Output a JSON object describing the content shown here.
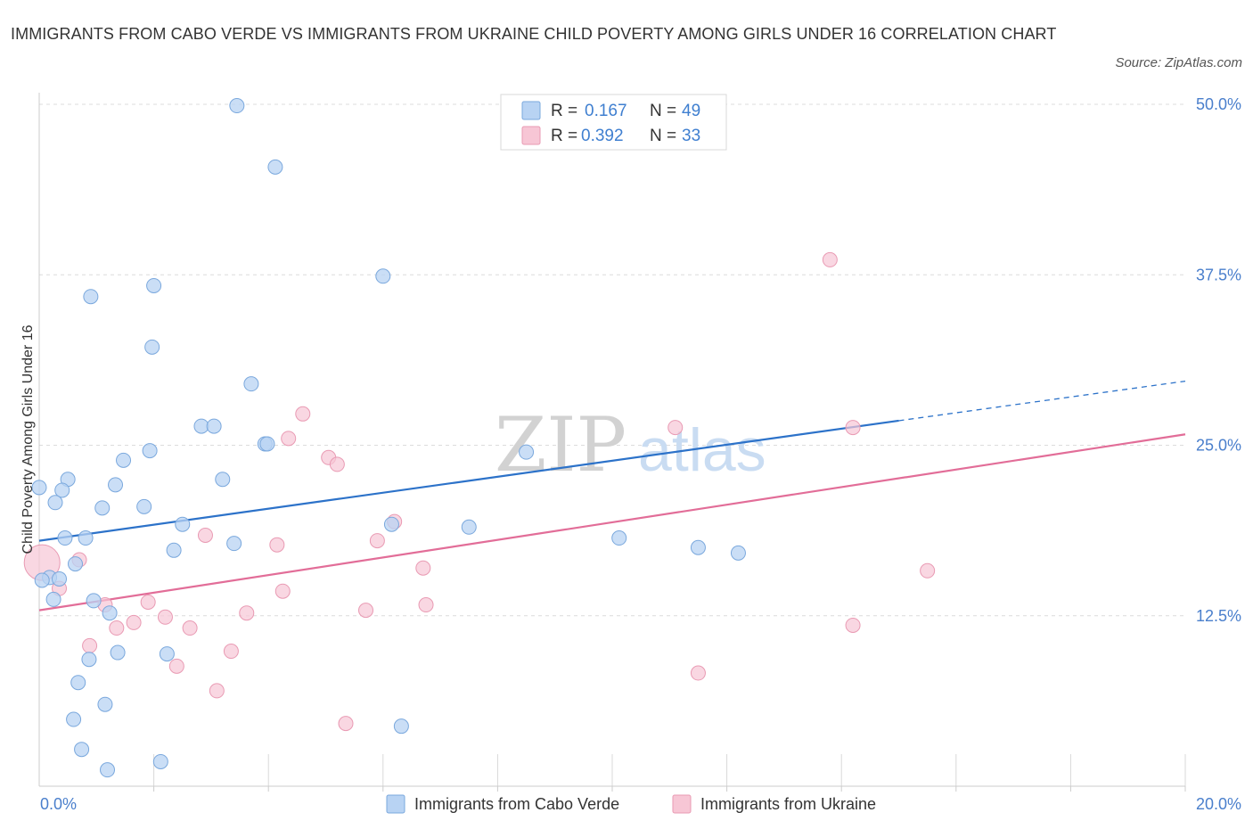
{
  "title": "IMMIGRANTS FROM CABO VERDE VS IMMIGRANTS FROM UKRAINE CHILD POVERTY AMONG GIRLS UNDER 16 CORRELATION CHART",
  "source": "Source: ZipAtlas.com",
  "colors": {
    "cabo_verde_fill": "#b8d3f3",
    "cabo_verde_stroke": "#7aa8dd",
    "cabo_verde_line": "#2c72c9",
    "ukraine_fill": "#f7c6d5",
    "ukraine_stroke": "#e99ab3",
    "ukraine_line": "#e26d98",
    "tick_label": "#4a7fcc",
    "grid": "#dcdcdc"
  },
  "stats_box": {
    "rows": [
      {
        "r_label": "R =",
        "r_value": "0.167",
        "n_label": "N =",
        "n_value": "49"
      },
      {
        "r_label": "R =",
        "r_value": "0.392",
        "n_label": "N =",
        "n_value": "33"
      }
    ]
  },
  "watermark": {
    "part1": "ZIP",
    "part2": "atlas"
  },
  "chart_data": {
    "type": "scatter",
    "title": "IMMIGRANTS FROM CABO VERDE VS IMMIGRANTS FROM UKRAINE CHILD POVERTY AMONG GIRLS UNDER 16 CORRELATION CHART",
    "xlabel": "",
    "ylabel": "Child Poverty Among Girls Under 16",
    "xlim": [
      0,
      20
    ],
    "ylim": [
      0,
      50
    ],
    "x_tick_labels": [
      "0.0%",
      "20.0%"
    ],
    "y_ticks": [
      12.5,
      25.0,
      37.5,
      50.0
    ],
    "y_tick_labels": [
      "12.5%",
      "25.0%",
      "37.5%",
      "50.0%"
    ],
    "grid": true,
    "legend_position": "bottom-center",
    "series": [
      {
        "name": "Immigrants from Cabo Verde",
        "r": 0.167,
        "n": 49,
        "trend": {
          "x0": 0,
          "y0": 18.0,
          "x1": 15.0,
          "y1": 26.8,
          "dashed_to_x": 20,
          "dashed_to_y": 29.7
        },
        "points": [
          {
            "x": 3.45,
            "y": 49.9
          },
          {
            "x": 4.12,
            "y": 45.4
          },
          {
            "x": 6.0,
            "y": 37.4
          },
          {
            "x": 2.0,
            "y": 36.7
          },
          {
            "x": 0.9,
            "y": 35.9
          },
          {
            "x": 1.97,
            "y": 32.2
          },
          {
            "x": 3.7,
            "y": 29.5
          },
          {
            "x": 2.83,
            "y": 26.4
          },
          {
            "x": 3.05,
            "y": 26.4
          },
          {
            "x": 3.94,
            "y": 25.1
          },
          {
            "x": 3.98,
            "y": 25.1
          },
          {
            "x": 1.93,
            "y": 24.6
          },
          {
            "x": 8.5,
            "y": 24.5
          },
          {
            "x": 1.47,
            "y": 23.9
          },
          {
            "x": 0.5,
            "y": 22.5
          },
          {
            "x": 3.2,
            "y": 22.5
          },
          {
            "x": 1.33,
            "y": 22.1
          },
          {
            "x": 0.0,
            "y": 21.9
          },
          {
            "x": 0.4,
            "y": 21.7
          },
          {
            "x": 0.28,
            "y": 20.8
          },
          {
            "x": 1.83,
            "y": 20.5
          },
          {
            "x": 1.1,
            "y": 20.4
          },
          {
            "x": 2.5,
            "y": 19.2
          },
          {
            "x": 6.15,
            "y": 19.2
          },
          {
            "x": 7.5,
            "y": 19.0
          },
          {
            "x": 0.45,
            "y": 18.2
          },
          {
            "x": 0.81,
            "y": 18.2
          },
          {
            "x": 10.12,
            "y": 18.2
          },
          {
            "x": 3.4,
            "y": 17.8
          },
          {
            "x": 11.5,
            "y": 17.5
          },
          {
            "x": 2.35,
            "y": 17.3
          },
          {
            "x": 12.2,
            "y": 17.1
          },
          {
            "x": 0.63,
            "y": 16.3
          },
          {
            "x": 0.18,
            "y": 15.3
          },
          {
            "x": 0.35,
            "y": 15.2
          },
          {
            "x": 0.05,
            "y": 15.1
          },
          {
            "x": 0.25,
            "y": 13.7
          },
          {
            "x": 0.95,
            "y": 13.6
          },
          {
            "x": 1.23,
            "y": 12.7
          },
          {
            "x": 1.37,
            "y": 9.8
          },
          {
            "x": 2.23,
            "y": 9.7
          },
          {
            "x": 0.87,
            "y": 9.3
          },
          {
            "x": 0.68,
            "y": 7.6
          },
          {
            "x": 1.15,
            "y": 6.0
          },
          {
            "x": 0.6,
            "y": 4.9
          },
          {
            "x": 6.32,
            "y": 4.4
          },
          {
            "x": 0.74,
            "y": 2.7
          },
          {
            "x": 2.12,
            "y": 1.8
          },
          {
            "x": 1.19,
            "y": 1.2
          }
        ]
      },
      {
        "name": "Immigrants from Ukraine",
        "r": 0.392,
        "n": 33,
        "trend": {
          "x0": 0,
          "y0": 12.9,
          "x1": 20,
          "y1": 25.8
        },
        "points": [
          {
            "x": 13.8,
            "y": 38.6
          },
          {
            "x": 4.6,
            "y": 27.3
          },
          {
            "x": 11.1,
            "y": 26.3
          },
          {
            "x": 14.2,
            "y": 26.3
          },
          {
            "x": 4.35,
            "y": 25.5
          },
          {
            "x": 5.05,
            "y": 24.1
          },
          {
            "x": 5.2,
            "y": 23.6
          },
          {
            "x": 6.2,
            "y": 19.4
          },
          {
            "x": 2.9,
            "y": 18.4
          },
          {
            "x": 5.9,
            "y": 18.0
          },
          {
            "x": 4.15,
            "y": 17.7
          },
          {
            "x": 0.7,
            "y": 16.6
          },
          {
            "x": 6.7,
            "y": 16.0
          },
          {
            "x": 15.5,
            "y": 15.8
          },
          {
            "x": 0.35,
            "y": 14.5
          },
          {
            "x": 4.25,
            "y": 14.3
          },
          {
            "x": 1.15,
            "y": 13.3
          },
          {
            "x": 1.9,
            "y": 13.5
          },
          {
            "x": 6.75,
            "y": 13.3
          },
          {
            "x": 5.7,
            "y": 12.9
          },
          {
            "x": 3.62,
            "y": 12.7
          },
          {
            "x": 2.2,
            "y": 12.4
          },
          {
            "x": 1.65,
            "y": 12.0
          },
          {
            "x": 1.35,
            "y": 11.6
          },
          {
            "x": 2.63,
            "y": 11.6
          },
          {
            "x": 14.2,
            "y": 11.8
          },
          {
            "x": 0.88,
            "y": 10.3
          },
          {
            "x": 3.35,
            "y": 9.9
          },
          {
            "x": 2.4,
            "y": 8.8
          },
          {
            "x": 11.5,
            "y": 8.3
          },
          {
            "x": 3.1,
            "y": 7.0
          },
          {
            "x": 5.35,
            "y": 4.6
          },
          {
            "x": 0.05,
            "y": 16.4
          }
        ]
      }
    ]
  }
}
